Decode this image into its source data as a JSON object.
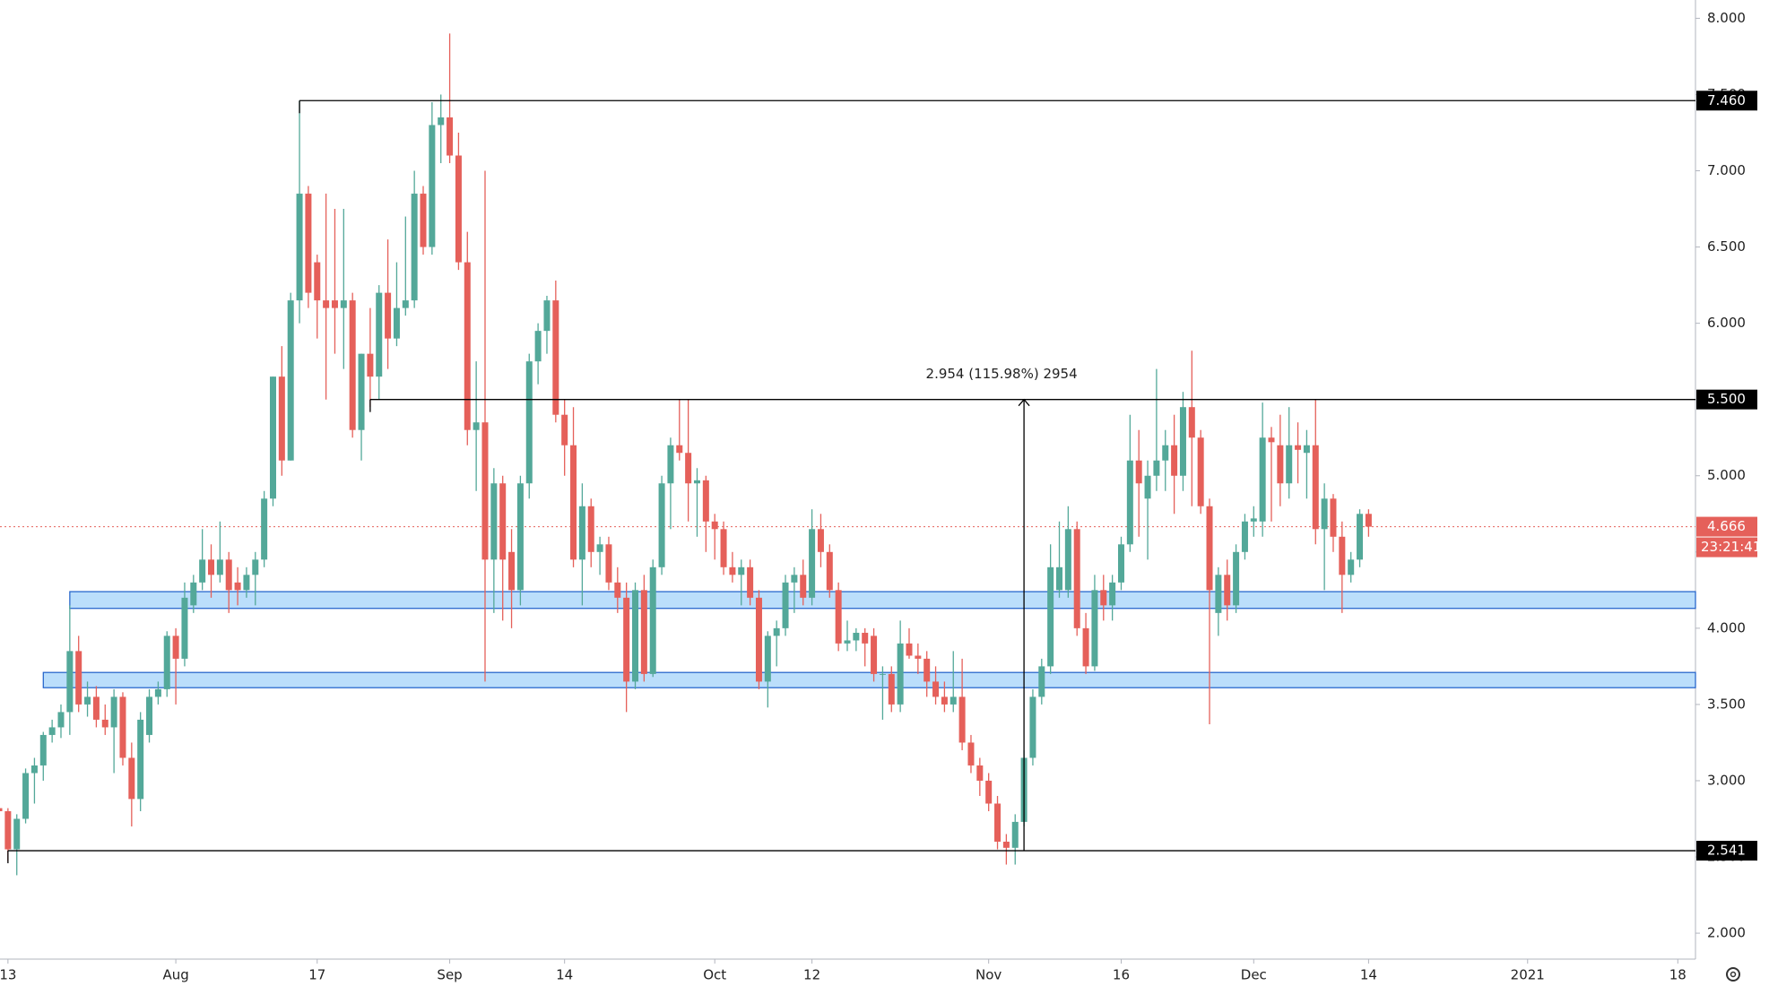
{
  "chart_data": {
    "type": "candlestick",
    "ylim": [
      1.83,
      8.12
    ],
    "yticks": [
      {
        "value": 2,
        "label": "2.000"
      },
      {
        "value": 2.5,
        "label": "2.500"
      },
      {
        "value": 3,
        "label": "3.000"
      },
      {
        "value": 3.5,
        "label": "3.500"
      },
      {
        "value": 4,
        "label": "4.000"
      },
      {
        "value": 4.5,
        "label": "4.500"
      },
      {
        "value": 5,
        "label": "5.000"
      },
      {
        "value": 5.5,
        "label": "5.500"
      },
      {
        "value": 6,
        "label": "6.000"
      },
      {
        "value": 6.5,
        "label": "6.500"
      },
      {
        "value": 7,
        "label": "7.000"
      },
      {
        "value": 7.5,
        "label": "7.500"
      },
      {
        "value": 8,
        "label": "8.000"
      }
    ],
    "xlim": [
      0.1,
      192
    ],
    "xticks": [
      {
        "value": 1,
        "label": "13"
      },
      {
        "value": 20,
        "label": "Aug"
      },
      {
        "value": 36,
        "label": "17"
      },
      {
        "value": 51,
        "label": "Sep"
      },
      {
        "value": 64,
        "label": "14"
      },
      {
        "value": 81,
        "label": "Oct"
      },
      {
        "value": 92,
        "label": "12"
      },
      {
        "value": 112,
        "label": "Nov"
      },
      {
        "value": 127,
        "label": "16"
      },
      {
        "value": 142,
        "label": "Dec"
      },
      {
        "value": 155,
        "label": "14"
      },
      {
        "value": 173,
        "label": "2021"
      },
      {
        "value": 190,
        "label": "18"
      }
    ],
    "up_color": "#53a899",
    "down_color": "#e5605a",
    "levels": [
      {
        "value": 7.46,
        "label": "7.460"
      },
      {
        "value": 5.5,
        "label": "5.500"
      },
      {
        "value": 2.541,
        "label": "2.541"
      }
    ],
    "zones": [
      [
        4.13,
        4.24
      ],
      [
        3.61,
        3.71
      ]
    ],
    "zone_color": "#bbdefb",
    "measure_label": "2.954 (115.98%) 2954",
    "last_price": {
      "value": 4.666,
      "label": "4.666"
    },
    "countdown": "23:21:41",
    "candles": [
      {
        "o": 2.82,
        "h": 2.86,
        "l": 2.72,
        "c": 2.8
      },
      {
        "o": 2.8,
        "h": 2.82,
        "l": 2.47,
        "c": 2.55
      },
      {
        "o": 2.55,
        "h": 2.78,
        "l": 2.38,
        "c": 2.75
      },
      {
        "o": 2.75,
        "h": 3.08,
        "l": 2.72,
        "c": 3.05
      },
      {
        "o": 3.05,
        "h": 3.15,
        "l": 2.85,
        "c": 3.1
      },
      {
        "o": 3.1,
        "h": 3.32,
        "l": 3.0,
        "c": 3.3
      },
      {
        "o": 3.3,
        "h": 3.4,
        "l": 3.25,
        "c": 3.35
      },
      {
        "o": 3.35,
        "h": 3.5,
        "l": 3.28,
        "c": 3.45
      },
      {
        "o": 3.45,
        "h": 4.15,
        "l": 3.3,
        "c": 3.85
      },
      {
        "o": 3.85,
        "h": 3.95,
        "l": 3.45,
        "c": 3.5
      },
      {
        "o": 3.5,
        "h": 3.65,
        "l": 3.42,
        "c": 3.55
      },
      {
        "o": 3.55,
        "h": 3.62,
        "l": 3.35,
        "c": 3.4
      },
      {
        "o": 3.4,
        "h": 3.5,
        "l": 3.3,
        "c": 3.35
      },
      {
        "o": 3.35,
        "h": 3.6,
        "l": 3.05,
        "c": 3.55
      },
      {
        "o": 3.55,
        "h": 3.58,
        "l": 3.1,
        "c": 3.15
      },
      {
        "o": 3.15,
        "h": 3.25,
        "l": 2.7,
        "c": 2.88
      },
      {
        "o": 2.88,
        "h": 3.45,
        "l": 2.8,
        "c": 3.4
      },
      {
        "o": 3.3,
        "h": 3.6,
        "l": 3.25,
        "c": 3.55
      },
      {
        "o": 3.55,
        "h": 3.65,
        "l": 3.5,
        "c": 3.6
      },
      {
        "o": 3.6,
        "h": 3.98,
        "l": 3.55,
        "c": 3.95
      },
      {
        "o": 3.95,
        "h": 4.0,
        "l": 3.5,
        "c": 3.8
      },
      {
        "o": 3.8,
        "h": 4.3,
        "l": 3.75,
        "c": 4.2
      },
      {
        "o": 4.15,
        "h": 4.35,
        "l": 4.1,
        "c": 4.3
      },
      {
        "o": 4.3,
        "h": 4.65,
        "l": 4.25,
        "c": 4.45
      },
      {
        "o": 4.45,
        "h": 4.55,
        "l": 4.2,
        "c": 4.35
      },
      {
        "o": 4.35,
        "h": 4.7,
        "l": 4.3,
        "c": 4.45
      },
      {
        "o": 4.45,
        "h": 4.5,
        "l": 4.1,
        "c": 4.25
      },
      {
        "o": 4.3,
        "h": 4.4,
        "l": 4.15,
        "c": 4.25
      },
      {
        "o": 4.25,
        "h": 4.4,
        "l": 4.2,
        "c": 4.35
      },
      {
        "o": 4.35,
        "h": 4.5,
        "l": 4.15,
        "c": 4.45
      },
      {
        "o": 4.45,
        "h": 4.9,
        "l": 4.4,
        "c": 4.85
      },
      {
        "o": 4.85,
        "h": 5.65,
        "l": 4.8,
        "c": 5.65
      },
      {
        "o": 5.65,
        "h": 5.85,
        "l": 5.0,
        "c": 5.1
      },
      {
        "o": 5.1,
        "h": 6.2,
        "l": 5.1,
        "c": 6.15
      },
      {
        "o": 6.15,
        "h": 7.46,
        "l": 6.0,
        "c": 6.85
      },
      {
        "o": 6.85,
        "h": 6.9,
        "l": 6.1,
        "c": 6.2
      },
      {
        "o": 6.4,
        "h": 6.45,
        "l": 5.9,
        "c": 6.15
      },
      {
        "o": 6.15,
        "h": 6.85,
        "l": 5.5,
        "c": 6.1
      },
      {
        "o": 6.15,
        "h": 6.75,
        "l": 5.8,
        "c": 6.1
      },
      {
        "o": 6.1,
        "h": 6.75,
        "l": 5.7,
        "c": 6.15
      },
      {
        "o": 6.15,
        "h": 6.2,
        "l": 5.25,
        "c": 5.3
      },
      {
        "o": 5.3,
        "h": 5.8,
        "l": 5.1,
        "c": 5.8
      },
      {
        "o": 5.8,
        "h": 6.1,
        "l": 5.45,
        "c": 5.65
      },
      {
        "o": 5.65,
        "h": 6.25,
        "l": 5.5,
        "c": 6.2
      },
      {
        "o": 6.2,
        "h": 6.55,
        "l": 5.7,
        "c": 5.9
      },
      {
        "o": 5.9,
        "h": 6.4,
        "l": 5.85,
        "c": 6.1
      },
      {
        "o": 6.1,
        "h": 6.7,
        "l": 6.05,
        "c": 6.15
      },
      {
        "o": 6.15,
        "h": 7.0,
        "l": 6.1,
        "c": 6.85
      },
      {
        "o": 6.85,
        "h": 6.9,
        "l": 6.45,
        "c": 6.5
      },
      {
        "o": 6.5,
        "h": 7.45,
        "l": 6.45,
        "c": 7.3
      },
      {
        "o": 7.3,
        "h": 7.5,
        "l": 7.05,
        "c": 7.35
      },
      {
        "o": 7.35,
        "h": 7.9,
        "l": 7.05,
        "c": 7.1
      },
      {
        "o": 7.1,
        "h": 7.25,
        "l": 6.35,
        "c": 6.4
      },
      {
        "o": 6.4,
        "h": 6.6,
        "l": 5.2,
        "c": 5.3
      },
      {
        "o": 5.3,
        "h": 5.75,
        "l": 4.9,
        "c": 5.35
      },
      {
        "o": 5.35,
        "h": 7.0,
        "l": 3.65,
        "c": 4.45
      },
      {
        "o": 4.45,
        "h": 5.05,
        "l": 4.1,
        "c": 4.95
      },
      {
        "o": 4.95,
        "h": 5.0,
        "l": 4.05,
        "c": 4.45
      },
      {
        "o": 4.5,
        "h": 4.65,
        "l": 4.0,
        "c": 4.25
      },
      {
        "o": 4.25,
        "h": 5.0,
        "l": 4.15,
        "c": 4.95
      },
      {
        "o": 4.95,
        "h": 5.8,
        "l": 4.85,
        "c": 5.75
      },
      {
        "o": 5.75,
        "h": 6.0,
        "l": 5.6,
        "c": 5.95
      },
      {
        "o": 5.95,
        "h": 6.18,
        "l": 5.8,
        "c": 6.15
      },
      {
        "o": 6.15,
        "h": 6.28,
        "l": 5.35,
        "c": 5.4
      },
      {
        "o": 5.4,
        "h": 5.5,
        "l": 5.0,
        "c": 5.2
      },
      {
        "o": 5.2,
        "h": 5.45,
        "l": 4.4,
        "c": 4.45
      },
      {
        "o": 4.45,
        "h": 4.95,
        "l": 4.15,
        "c": 4.8
      },
      {
        "o": 4.8,
        "h": 4.85,
        "l": 4.4,
        "c": 4.5
      },
      {
        "o": 4.5,
        "h": 4.6,
        "l": 4.35,
        "c": 4.55
      },
      {
        "o": 4.55,
        "h": 4.6,
        "l": 4.25,
        "c": 4.3
      },
      {
        "o": 4.3,
        "h": 4.4,
        "l": 4.1,
        "c": 4.2
      },
      {
        "o": 4.2,
        "h": 4.3,
        "l": 3.45,
        "c": 3.65
      },
      {
        "o": 3.65,
        "h": 4.3,
        "l": 3.6,
        "c": 4.25
      },
      {
        "o": 4.25,
        "h": 4.35,
        "l": 3.65,
        "c": 3.7
      },
      {
        "o": 3.7,
        "h": 4.45,
        "l": 3.68,
        "c": 4.4
      },
      {
        "o": 4.4,
        "h": 5.0,
        "l": 4.35,
        "c": 4.95
      },
      {
        "o": 4.95,
        "h": 5.25,
        "l": 4.65,
        "c": 5.2
      },
      {
        "o": 5.2,
        "h": 5.5,
        "l": 5.1,
        "c": 5.15
      },
      {
        "o": 5.15,
        "h": 5.5,
        "l": 4.7,
        "c": 4.95
      },
      {
        "o": 4.95,
        "h": 5.05,
        "l": 4.6,
        "c": 4.97
      },
      {
        "o": 4.97,
        "h": 5.0,
        "l": 4.5,
        "c": 4.7
      },
      {
        "o": 4.7,
        "h": 4.75,
        "l": 4.45,
        "c": 4.65
      },
      {
        "o": 4.65,
        "h": 4.7,
        "l": 4.35,
        "c": 4.4
      },
      {
        "o": 4.4,
        "h": 4.5,
        "l": 4.3,
        "c": 4.35
      },
      {
        "o": 4.35,
        "h": 4.45,
        "l": 4.15,
        "c": 4.4
      },
      {
        "o": 4.4,
        "h": 4.45,
        "l": 4.15,
        "c": 4.2
      },
      {
        "o": 4.2,
        "h": 4.25,
        "l": 3.6,
        "c": 3.65
      },
      {
        "o": 3.65,
        "h": 3.98,
        "l": 3.48,
        "c": 3.95
      },
      {
        "o": 3.95,
        "h": 4.05,
        "l": 3.75,
        "c": 4.0
      },
      {
        "o": 4.0,
        "h": 4.35,
        "l": 3.95,
        "c": 4.3
      },
      {
        "o": 4.3,
        "h": 4.4,
        "l": 4.1,
        "c": 4.35
      },
      {
        "o": 4.35,
        "h": 4.45,
        "l": 4.15,
        "c": 4.2
      },
      {
        "o": 4.2,
        "h": 4.78,
        "l": 4.15,
        "c": 4.65
      },
      {
        "o": 4.65,
        "h": 4.75,
        "l": 4.4,
        "c": 4.5
      },
      {
        "o": 4.5,
        "h": 4.55,
        "l": 4.2,
        "c": 4.25
      },
      {
        "o": 4.25,
        "h": 4.3,
        "l": 3.85,
        "c": 3.9
      },
      {
        "o": 3.9,
        "h": 4.05,
        "l": 3.85,
        "c": 3.92
      },
      {
        "o": 3.92,
        "h": 4.0,
        "l": 3.85,
        "c": 3.97
      },
      {
        "o": 3.97,
        "h": 4.0,
        "l": 3.75,
        "c": 3.9
      },
      {
        "o": 3.95,
        "h": 4.0,
        "l": 3.65,
        "c": 3.7
      },
      {
        "o": 3.7,
        "h": 3.75,
        "l": 3.4,
        "c": 3.7
      },
      {
        "o": 3.7,
        "h": 3.75,
        "l": 3.45,
        "c": 3.5
      },
      {
        "o": 3.5,
        "h": 4.05,
        "l": 3.45,
        "c": 3.9
      },
      {
        "o": 3.9,
        "h": 4.0,
        "l": 3.8,
        "c": 3.82
      },
      {
        "o": 3.82,
        "h": 3.9,
        "l": 3.7,
        "c": 3.8
      },
      {
        "o": 3.8,
        "h": 3.85,
        "l": 3.55,
        "c": 3.65
      },
      {
        "o": 3.65,
        "h": 3.75,
        "l": 3.5,
        "c": 3.55
      },
      {
        "o": 3.55,
        "h": 3.65,
        "l": 3.45,
        "c": 3.5
      },
      {
        "o": 3.5,
        "h": 3.85,
        "l": 3.45,
        "c": 3.55
      },
      {
        "o": 3.55,
        "h": 3.8,
        "l": 3.2,
        "c": 3.25
      },
      {
        "o": 3.25,
        "h": 3.3,
        "l": 3.05,
        "c": 3.1
      },
      {
        "o": 3.1,
        "h": 3.15,
        "l": 2.9,
        "c": 3.0
      },
      {
        "o": 3.0,
        "h": 3.05,
        "l": 2.8,
        "c": 2.85
      },
      {
        "o": 2.85,
        "h": 2.9,
        "l": 2.55,
        "c": 2.6
      },
      {
        "o": 2.6,
        "h": 2.65,
        "l": 2.45,
        "c": 2.56
      },
      {
        "o": 2.56,
        "h": 2.78,
        "l": 2.45,
        "c": 2.73
      },
      {
        "o": 2.73,
        "h": 3.2,
        "l": 2.7,
        "c": 3.15
      },
      {
        "o": 3.15,
        "h": 3.6,
        "l": 3.1,
        "c": 3.55
      },
      {
        "o": 3.55,
        "h": 3.8,
        "l": 3.5,
        "c": 3.75
      },
      {
        "o": 3.75,
        "h": 4.55,
        "l": 3.7,
        "c": 4.4
      },
      {
        "o": 4.25,
        "h": 4.7,
        "l": 4.2,
        "c": 4.4
      },
      {
        "o": 4.25,
        "h": 4.8,
        "l": 4.2,
        "c": 4.65
      },
      {
        "o": 4.65,
        "h": 4.7,
        "l": 3.95,
        "c": 4.0
      },
      {
        "o": 4.0,
        "h": 4.1,
        "l": 3.7,
        "c": 3.75
      },
      {
        "o": 3.75,
        "h": 4.35,
        "l": 3.72,
        "c": 4.25
      },
      {
        "o": 4.25,
        "h": 4.35,
        "l": 4.05,
        "c": 4.15
      },
      {
        "o": 4.15,
        "h": 4.35,
        "l": 4.05,
        "c": 4.3
      },
      {
        "o": 4.3,
        "h": 4.6,
        "l": 4.25,
        "c": 4.55
      },
      {
        "o": 4.55,
        "h": 5.4,
        "l": 4.5,
        "c": 5.1
      },
      {
        "o": 5.1,
        "h": 5.3,
        "l": 4.6,
        "c": 4.95
      },
      {
        "o": 4.85,
        "h": 5.1,
        "l": 4.45,
        "c": 5.0
      },
      {
        "o": 5.0,
        "h": 5.7,
        "l": 4.9,
        "c": 5.1
      },
      {
        "o": 5.1,
        "h": 5.3,
        "l": 4.9,
        "c": 5.2
      },
      {
        "o": 5.2,
        "h": 5.4,
        "l": 4.75,
        "c": 5.0
      },
      {
        "o": 5.0,
        "h": 5.55,
        "l": 4.9,
        "c": 5.45
      },
      {
        "o": 5.45,
        "h": 5.82,
        "l": 4.8,
        "c": 5.25
      },
      {
        "o": 5.25,
        "h": 5.3,
        "l": 4.75,
        "c": 4.8
      },
      {
        "o": 4.8,
        "h": 4.85,
        "l": 3.37,
        "c": 4.25
      },
      {
        "o": 4.1,
        "h": 4.4,
        "l": 3.95,
        "c": 4.35
      },
      {
        "o": 4.35,
        "h": 4.45,
        "l": 4.05,
        "c": 4.15
      },
      {
        "o": 4.15,
        "h": 4.55,
        "l": 4.1,
        "c": 4.5
      },
      {
        "o": 4.5,
        "h": 4.75,
        "l": 4.45,
        "c": 4.7
      },
      {
        "o": 4.7,
        "h": 4.8,
        "l": 4.6,
        "c": 4.72
      },
      {
        "o": 4.7,
        "h": 5.48,
        "l": 4.6,
        "c": 5.25
      },
      {
        "o": 5.25,
        "h": 5.32,
        "l": 4.7,
        "c": 5.22
      },
      {
        "o": 5.2,
        "h": 5.4,
        "l": 4.8,
        "c": 4.95
      },
      {
        "o": 4.95,
        "h": 5.45,
        "l": 4.85,
        "c": 5.2
      },
      {
        "o": 5.2,
        "h": 5.35,
        "l": 4.95,
        "c": 5.17
      },
      {
        "o": 5.15,
        "h": 5.3,
        "l": 4.85,
        "c": 5.2
      },
      {
        "o": 5.2,
        "h": 5.5,
        "l": 4.55,
        "c": 4.65
      },
      {
        "o": 4.65,
        "h": 4.95,
        "l": 4.25,
        "c": 4.85
      },
      {
        "o": 4.85,
        "h": 4.88,
        "l": 4.5,
        "c": 4.6
      },
      {
        "o": 4.6,
        "h": 4.7,
        "l": 4.1,
        "c": 4.35
      },
      {
        "o": 4.35,
        "h": 4.5,
        "l": 4.3,
        "c": 4.45
      },
      {
        "o": 4.45,
        "h": 4.78,
        "l": 4.4,
        "c": 4.75
      },
      {
        "o": 4.75,
        "h": 4.78,
        "l": 4.6,
        "c": 4.666
      }
    ]
  }
}
